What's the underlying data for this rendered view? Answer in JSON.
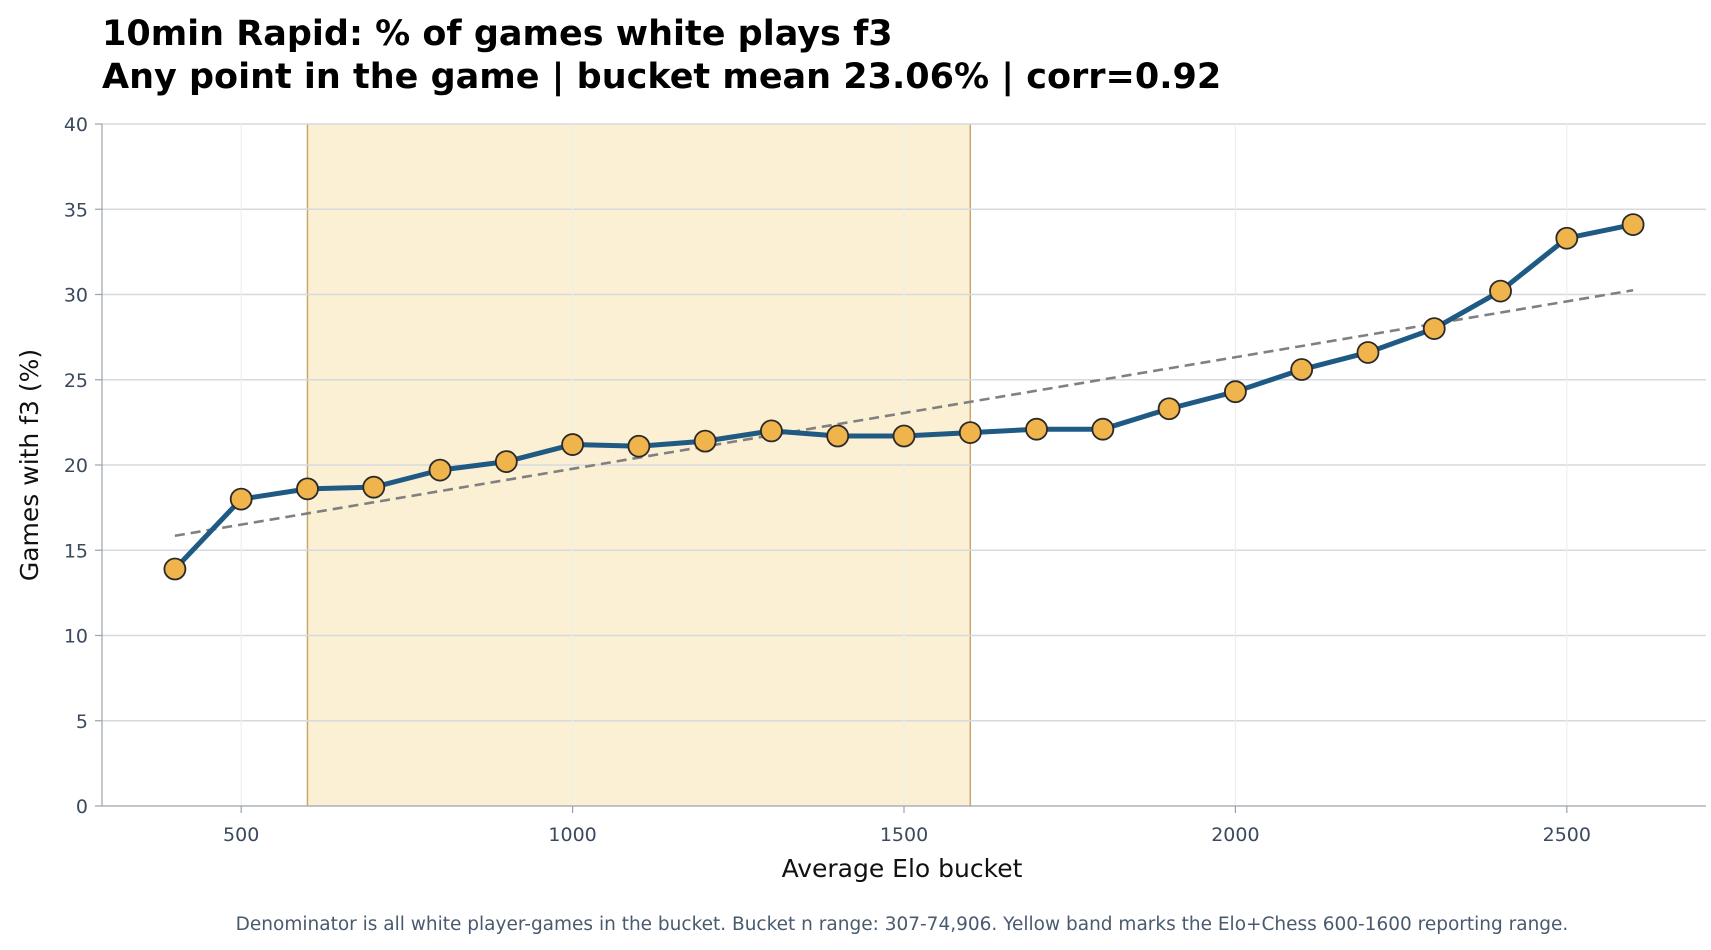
{
  "colors": {
    "line": "#1f5a85",
    "marker_fill": "#f0b44c",
    "marker_edge": "#2a2a2a",
    "band_fill": "#fbf0d3",
    "band_edge": "#c9a76a",
    "trend": "#808080",
    "grid_major": "#d6d9de",
    "grid_minor": "#eceef1",
    "axis": "#9aa3ad"
  },
  "chart_data": {
    "type": "line",
    "title": "10min Rapid: % of games white plays f3",
    "subtitle": "Any point in the game | bucket mean 23.06% | corr=0.92",
    "xlabel": "Average Elo bucket",
    "ylabel": "Games with f3 (%)",
    "footnote": "Denominator is all white player-games in the bucket. Bucket n range: 307-74,906. Yellow band marks the Elo+Chess 600-1600 reporting range.",
    "xlim": [
      290,
      2710
    ],
    "ylim": [
      0,
      40
    ],
    "xticks": [
      500,
      1000,
      1500,
      2000,
      2500
    ],
    "yticks": [
      0,
      5,
      10,
      15,
      20,
      25,
      30,
      35,
      40
    ],
    "grid": true,
    "highlight_band": [
      600,
      1600
    ],
    "trendline": {
      "style": "dashed",
      "x": [
        400,
        2600
      ],
      "y": [
        15.85,
        30.25
      ]
    },
    "series": [
      {
        "x": [
          400,
          500,
          600,
          700,
          800,
          900,
          1000,
          1100,
          1200,
          1300,
          1400,
          1500,
          1600,
          1700,
          1800,
          1900,
          2000,
          2100,
          2200,
          2300,
          2400,
          2500,
          2600
        ],
        "y": [
          13.9,
          18.0,
          18.6,
          18.7,
          19.7,
          20.2,
          21.2,
          21.1,
          21.4,
          22.0,
          21.7,
          21.7,
          21.9,
          22.1,
          22.1,
          23.3,
          24.3,
          25.6,
          26.6,
          28.0,
          30.2,
          33.3,
          34.1
        ]
      }
    ]
  }
}
